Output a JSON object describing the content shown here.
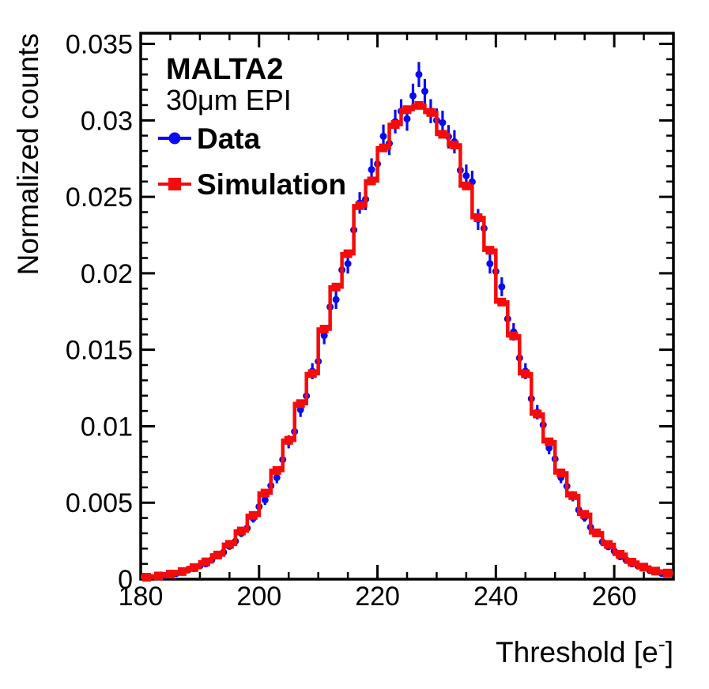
{
  "figure": {
    "background": "#ffffff",
    "frame_color": "#000000"
  },
  "legend": {
    "title": "MALTA2",
    "subtitle": "30μm EPI",
    "items": [
      {
        "label": "Data",
        "marker": "circle",
        "color": "#0a0af0"
      },
      {
        "label": "Simulation",
        "marker": "square",
        "color": "#f40b0b"
      }
    ]
  },
  "chart_data": {
    "type": "histogram",
    "title": "MALTA2",
    "subtitle": "30μm EPI",
    "xlabel": "Threshold [e⁻]",
    "xlabel_parts": {
      "main": "Threshold [e",
      "sup": "-",
      "close": "]"
    },
    "ylabel": "Normalized counts",
    "xlim": [
      180,
      270
    ],
    "ylim": [
      0,
      0.0357
    ],
    "grid": false,
    "legend_position": "top-left",
    "x_major_ticks": [
      180,
      200,
      220,
      240,
      260
    ],
    "x_tick_labels": [
      "180",
      "200",
      "220",
      "240",
      "260"
    ],
    "x_minor_step": 5,
    "y_major_ticks": [
      0,
      0.005,
      0.01,
      0.015,
      0.02,
      0.025,
      0.03,
      0.035
    ],
    "y_tick_labels": [
      "0",
      "0.005",
      "0.01",
      "0.015",
      "0.02",
      "0.025",
      "0.03",
      "0.035"
    ],
    "y_minor_step": 0.001,
    "error_coeff": 0.0045,
    "series": [
      {
        "name": "Data",
        "style": "points_with_errorbars",
        "marker": "circle",
        "color": "#0a0af0",
        "bin_width": 1,
        "x": [
          183,
          184,
          185,
          186,
          187,
          188,
          189,
          190,
          191,
          192,
          193,
          194,
          195,
          196,
          197,
          198,
          199,
          200,
          201,
          202,
          203,
          204,
          205,
          206,
          207,
          208,
          209,
          210,
          211,
          212,
          213,
          214,
          215,
          216,
          217,
          218,
          219,
          220,
          221,
          222,
          223,
          224,
          225,
          226,
          227,
          228,
          229,
          230,
          231,
          232,
          233,
          234,
          235,
          236,
          237,
          238,
          239,
          240,
          241,
          242,
          243,
          244,
          245,
          246,
          247,
          248,
          249,
          250,
          251,
          252,
          253,
          254,
          255,
          256,
          257,
          258,
          259,
          260,
          261,
          262,
          263,
          264,
          265,
          266,
          267,
          268
        ],
        "y": [
          0.00019,
          0.00024,
          0.00031,
          0.00037,
          0.00047,
          0.0006,
          0.00069,
          0.00087,
          0.001,
          0.00126,
          0.00154,
          0.00176,
          0.00215,
          0.00248,
          0.003,
          0.00334,
          0.00398,
          0.00474,
          0.00518,
          0.00611,
          0.00664,
          0.00782,
          0.00898,
          0.00965,
          0.01108,
          0.01198,
          0.0136,
          0.01424,
          0.01593,
          0.0178,
          0.01828,
          0.02022,
          0.02063,
          0.02283,
          0.0246,
          0.02484,
          0.02678,
          0.02715,
          0.02896,
          0.02849,
          0.02992,
          0.0306,
          0.0301,
          0.0316,
          0.033,
          0.0319,
          0.0306,
          0.03,
          0.02985,
          0.02893,
          0.0286,
          0.02674,
          0.02638,
          0.02598,
          0.02352,
          0.02294,
          0.02063,
          0.02012,
          0.01912,
          0.01702,
          0.01617,
          0.01446,
          0.0136,
          0.0118,
          0.01092,
          0.01009,
          0.00858,
          0.00786,
          0.00664,
          0.00608,
          0.00542,
          0.00453,
          0.00404,
          0.0034,
          0.003,
          0.00244,
          0.00212,
          0.00184,
          0.00147,
          0.00126,
          0.001,
          0.00086,
          0.00072,
          0.00057,
          0.00048,
          0.00038
        ]
      },
      {
        "name": "Simulation",
        "style": "step_histogram",
        "marker": "square",
        "color": "#f40b0b",
        "bin_width": 2,
        "x": [
          181,
          183,
          185,
          187,
          189,
          191,
          193,
          195,
          197,
          199,
          201,
          203,
          205,
          207,
          209,
          211,
          213,
          215,
          217,
          219,
          221,
          223,
          225,
          227,
          229,
          231,
          233,
          235,
          237,
          239,
          241,
          243,
          245,
          247,
          249,
          251,
          253,
          255,
          257,
          259,
          261,
          263,
          265,
          267,
          269
        ],
        "y": [
          0.00013,
          0.00021,
          0.00033,
          0.0005,
          0.00076,
          0.00113,
          0.00158,
          0.00228,
          0.00315,
          0.00417,
          0.00563,
          0.00711,
          0.00908,
          0.01148,
          0.01344,
          0.01635,
          0.0191,
          0.02128,
          0.02442,
          0.02604,
          0.0282,
          0.02973,
          0.0307,
          0.03098,
          0.03052,
          0.02909,
          0.02839,
          0.02571,
          0.02364,
          0.02151,
          0.01812,
          0.01591,
          0.01343,
          0.0108,
          0.00898,
          0.00695,
          0.00546,
          0.00424,
          0.00303,
          0.00227,
          0.00163,
          0.00111,
          0.00079,
          0.00053,
          0.0004
        ]
      }
    ]
  }
}
